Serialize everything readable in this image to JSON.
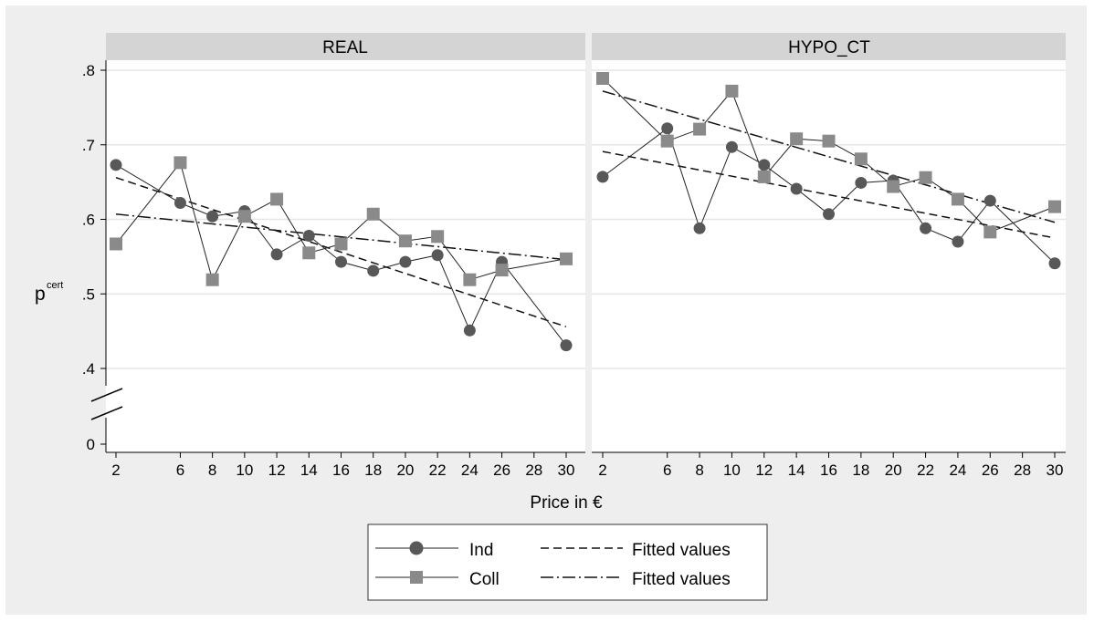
{
  "chart_data": {
    "type": "line",
    "ylabel": "p",
    "ylabel_superscript": "cert",
    "xlabel": "Price in €",
    "y_axis": {
      "ticks": [
        0,
        0.4,
        0.5,
        0.6,
        0.7,
        0.8
      ],
      "tick_labels": [
        "0",
        ".4",
        ".5",
        ".6",
        ".7",
        ".8"
      ],
      "axis_break": true,
      "break_between": [
        0,
        0.4
      ],
      "range": [
        0,
        0.8
      ]
    },
    "x_axis": {
      "ticks": [
        2,
        6,
        8,
        10,
        12,
        14,
        16,
        18,
        20,
        22,
        24,
        26,
        28,
        30
      ],
      "tick_labels": [
        "2",
        "6",
        "8",
        "10",
        "12",
        "14",
        "16",
        "18",
        "20",
        "22",
        "24",
        "26",
        "28",
        "30"
      ],
      "range": [
        2,
        30
      ]
    },
    "grid": true,
    "legend_position": "bottom",
    "legend": [
      {
        "label": "Ind",
        "style": "line-circle"
      },
      {
        "label": "Fitted values",
        "style": "dashed"
      },
      {
        "label": "Coll",
        "style": "line-square"
      },
      {
        "label": "Fitted values",
        "style": "dash-dot"
      }
    ],
    "panels": [
      {
        "title": "REAL",
        "x": [
          2,
          6,
          8,
          10,
          12,
          14,
          16,
          18,
          20,
          22,
          24,
          26,
          30
        ],
        "series": [
          {
            "name": "Ind",
            "marker": "circle",
            "values": [
              0.673,
              0.622,
              0.604,
              0.611,
              0.553,
              0.578,
              0.543,
              0.531,
              0.543,
              0.552,
              0.451,
              0.543,
              0.431
            ]
          },
          {
            "name": "Coll",
            "marker": "square",
            "values": [
              0.567,
              0.676,
              0.519,
              0.604,
              0.627,
              0.555,
              0.567,
              0.607,
              0.571,
              0.577,
              0.519,
              0.532,
              0.547
            ]
          }
        ],
        "fits": [
          {
            "name": "Fitted values",
            "of": "Ind",
            "style": "dashed",
            "x": [
              2,
              30
            ],
            "y": [
              0.656,
              0.456
            ]
          },
          {
            "name": "Fitted values",
            "of": "Coll",
            "style": "dash-dot",
            "x": [
              2,
              30
            ],
            "y": [
              0.607,
              0.546
            ]
          }
        ]
      },
      {
        "title": "HYPO_CT",
        "x": [
          2,
          6,
          8,
          10,
          12,
          14,
          16,
          18,
          20,
          22,
          24,
          26,
          30
        ],
        "series": [
          {
            "name": "Ind",
            "marker": "circle",
            "values": [
              0.657,
              0.722,
              0.588,
              0.697,
              0.673,
              0.641,
              0.607,
              0.649,
              0.652,
              0.588,
              0.57,
              0.625,
              0.541
            ]
          },
          {
            "name": "Coll",
            "marker": "square",
            "values": [
              0.789,
              0.705,
              0.721,
              0.772,
              0.657,
              0.708,
              0.705,
              0.681,
              0.644,
              0.656,
              0.627,
              0.583,
              0.617
            ]
          }
        ],
        "fits": [
          {
            "name": "Fitted values",
            "of": "Ind",
            "style": "dashed",
            "x": [
              2,
              30
            ],
            "y": [
              0.691,
              0.575
            ]
          },
          {
            "name": "Fitted values",
            "of": "Coll",
            "style": "dash-dot",
            "x": [
              2,
              30
            ],
            "y": [
              0.772,
              0.596
            ]
          }
        ]
      }
    ]
  },
  "colors": {
    "background": "#eeeeee",
    "plot": "#ffffff",
    "header": "#d4d4d4",
    "grid": "#e6e6e6",
    "marker": "#585858",
    "square_marker": "#8a8a8a",
    "line": "#222222",
    "fit_line": "#111111"
  }
}
